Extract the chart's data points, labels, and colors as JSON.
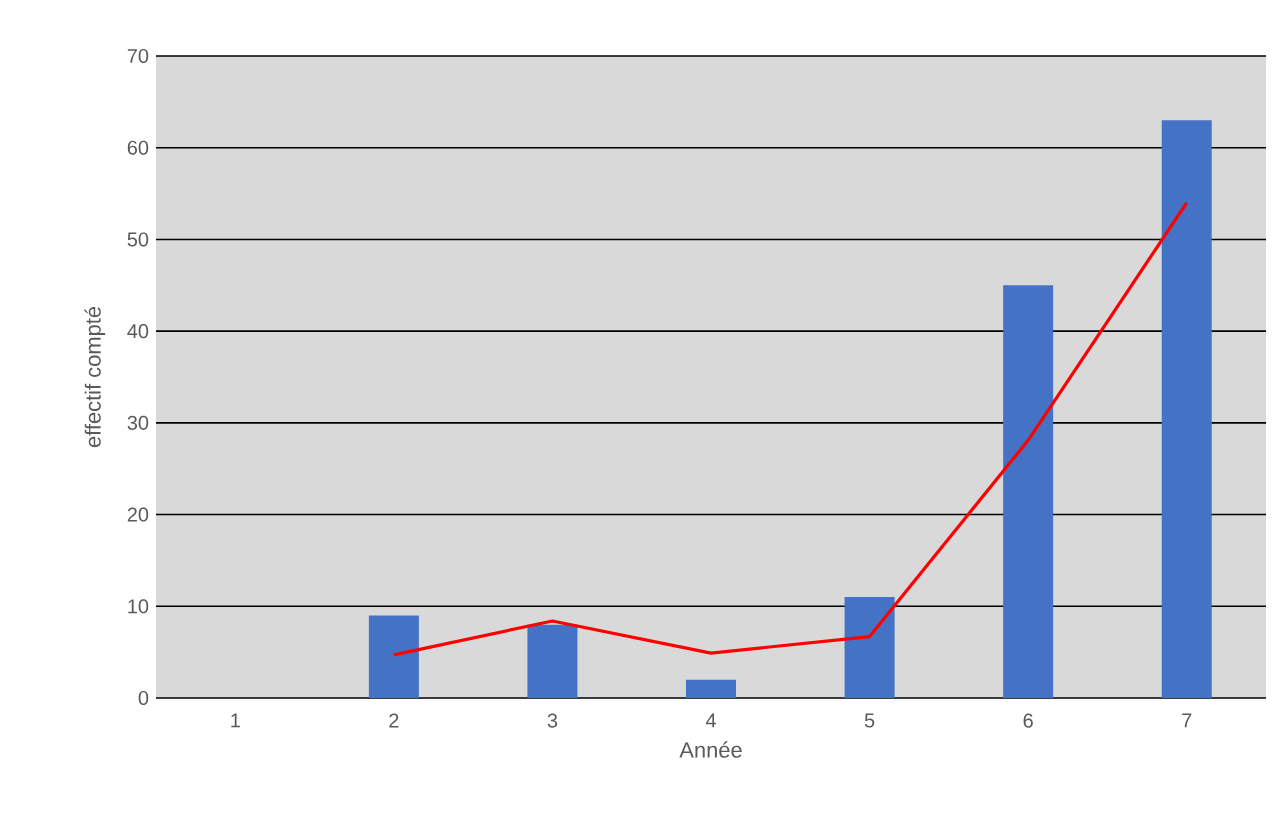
{
  "chart_data": {
    "type": "bar",
    "xlabel": "Année",
    "ylabel": "effectif compté",
    "categories": [
      "1",
      "2",
      "3",
      "4",
      "5",
      "6",
      "7"
    ],
    "series": [
      {
        "color": "#4472c4",
        "values": [
          0,
          9,
          8,
          2,
          11,
          45,
          63
        ]
      },
      {
        "type": "line",
        "color": "#ff0000",
        "values": [
          null,
          4.7,
          8.4,
          4.9,
          6.7,
          28.1,
          54
        ]
      }
    ],
    "ylim": [
      0,
      70
    ],
    "yticks": [
      0,
      10,
      20,
      30,
      40,
      50,
      60,
      70
    ],
    "grid": "y"
  }
}
